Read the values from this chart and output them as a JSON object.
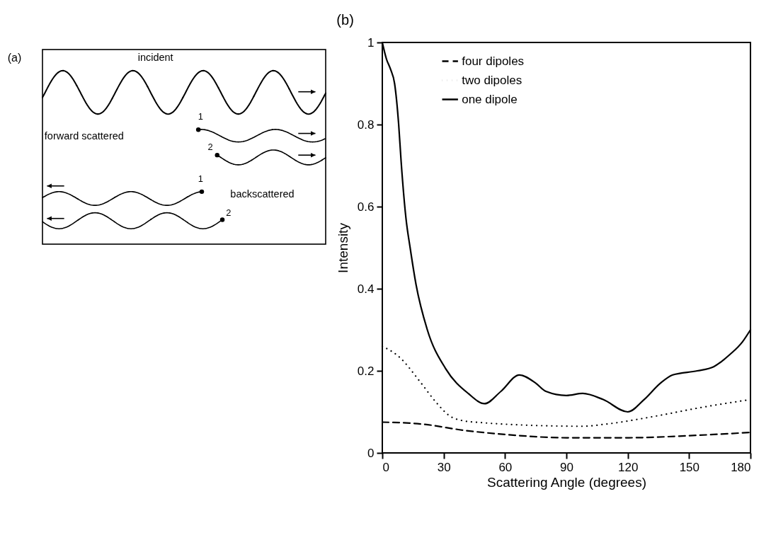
{
  "chart_data": [
    {
      "type": "other",
      "title": "(a)",
      "annotations": [
        "incident",
        "forward scattered",
        "backscattered",
        "1",
        "2",
        "1",
        "2"
      ]
    },
    {
      "type": "line",
      "title": "(b)",
      "xlabel": "Scattering Angle (degrees)",
      "ylabel": "Intensity",
      "xlim": [
        0,
        180
      ],
      "ylim": [
        0,
        1
      ],
      "xticks": [
        0,
        30,
        60,
        90,
        120,
        150,
        180
      ],
      "yticks": [
        0,
        0.2,
        0.4,
        0.6,
        0.8,
        1
      ],
      "grid": false,
      "legend": "top",
      "marker": "none",
      "series": [
        {
          "name": "four dipoles",
          "color": "#000000",
          "line_style": "dashed",
          "x": [
            0,
            20,
            40,
            60,
            90,
            120,
            150,
            180
          ],
          "values": [
            0.075,
            0.07,
            0.055,
            0.045,
            0.037,
            0.037,
            0.042,
            0.05
          ]
        },
        {
          "name": "two dipoles",
          "color": "#000000",
          "line_style": "dotted",
          "x": [
            0,
            8,
            19,
            26,
            33,
            40,
            48,
            60,
            98,
            109,
            134,
            155,
            180
          ],
          "values": [
            0.26,
            0.235,
            0.17,
            0.125,
            0.09,
            0.078,
            0.074,
            0.07,
            0.065,
            0.07,
            0.09,
            0.11,
            0.13
          ]
        },
        {
          "name": "one dipole",
          "color": "#000000",
          "line_style": "solid",
          "x": [
            0,
            2,
            4,
            6,
            8,
            9.2,
            11.6,
            13.6,
            16.5,
            22,
            31,
            42,
            50,
            58,
            67,
            75,
            80,
            90,
            98,
            108,
            120,
            128,
            136,
            142,
            154,
            162,
            170,
            176,
            180
          ],
          "values": [
            1,
            0.96,
            0.935,
            0.9,
            0.8,
            0.71,
            0.57,
            0.5,
            0.41,
            0.3,
            0.205,
            0.145,
            0.12,
            0.15,
            0.19,
            0.17,
            0.15,
            0.14,
            0.145,
            0.13,
            0.1,
            0.13,
            0.17,
            0.19,
            0.2,
            0.21,
            0.24,
            0.27,
            0.3
          ]
        }
      ]
    }
  ]
}
